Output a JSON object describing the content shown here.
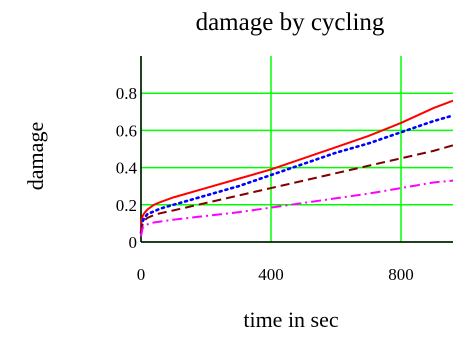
{
  "chart_data": {
    "type": "line",
    "title": "damage by cycling",
    "xlabel": "time in sec",
    "ylabel": "damage",
    "xlim": [
      0,
      960
    ],
    "ylim": [
      0,
      1.0
    ],
    "x_ticks": [
      0,
      400,
      800
    ],
    "y_ticks": [
      0,
      0.2,
      0.4,
      0.6,
      0.8
    ],
    "x_tick_labels": [
      "0",
      "400",
      "800"
    ],
    "y_tick_labels": [
      "0",
      "0.2",
      "0.4",
      "0.6",
      "0.8"
    ],
    "grid": true,
    "grid_color": "#00ff00",
    "series": [
      {
        "color": "#ff0000",
        "style": "solid",
        "x": [
          0,
          1,
          5,
          10,
          20,
          40,
          60,
          100,
          200,
          300,
          400,
          500,
          600,
          700,
          800,
          900,
          960
        ],
        "y": [
          0.04,
          0.11,
          0.14,
          0.155,
          0.175,
          0.2,
          0.215,
          0.24,
          0.29,
          0.34,
          0.39,
          0.45,
          0.51,
          0.57,
          0.64,
          0.72,
          0.76
        ]
      },
      {
        "color": "#0000ff",
        "style": "dotted",
        "x": [
          0,
          5,
          10,
          20,
          40,
          60,
          100,
          200,
          300,
          400,
          500,
          600,
          700,
          800,
          900,
          960
        ],
        "y": [
          0.05,
          0.11,
          0.13,
          0.15,
          0.165,
          0.18,
          0.2,
          0.25,
          0.3,
          0.36,
          0.42,
          0.48,
          0.53,
          0.59,
          0.65,
          0.68
        ]
      },
      {
        "color": "#800000",
        "style": "dashed",
        "x": [
          0,
          5,
          10,
          20,
          40,
          60,
          100,
          200,
          300,
          400,
          500,
          600,
          700,
          800,
          900,
          960
        ],
        "y": [
          0.05,
          0.1,
          0.115,
          0.13,
          0.145,
          0.155,
          0.17,
          0.21,
          0.25,
          0.29,
          0.33,
          0.37,
          0.41,
          0.45,
          0.49,
          0.52
        ]
      },
      {
        "color": "#ff00ff",
        "style": "dashdot",
        "x": [
          0,
          5,
          10,
          20,
          40,
          60,
          100,
          200,
          300,
          400,
          500,
          600,
          700,
          800,
          900,
          960
        ],
        "y": [
          0.03,
          0.075,
          0.085,
          0.095,
          0.105,
          0.11,
          0.12,
          0.14,
          0.16,
          0.185,
          0.21,
          0.235,
          0.26,
          0.29,
          0.32,
          0.33
        ]
      }
    ]
  }
}
